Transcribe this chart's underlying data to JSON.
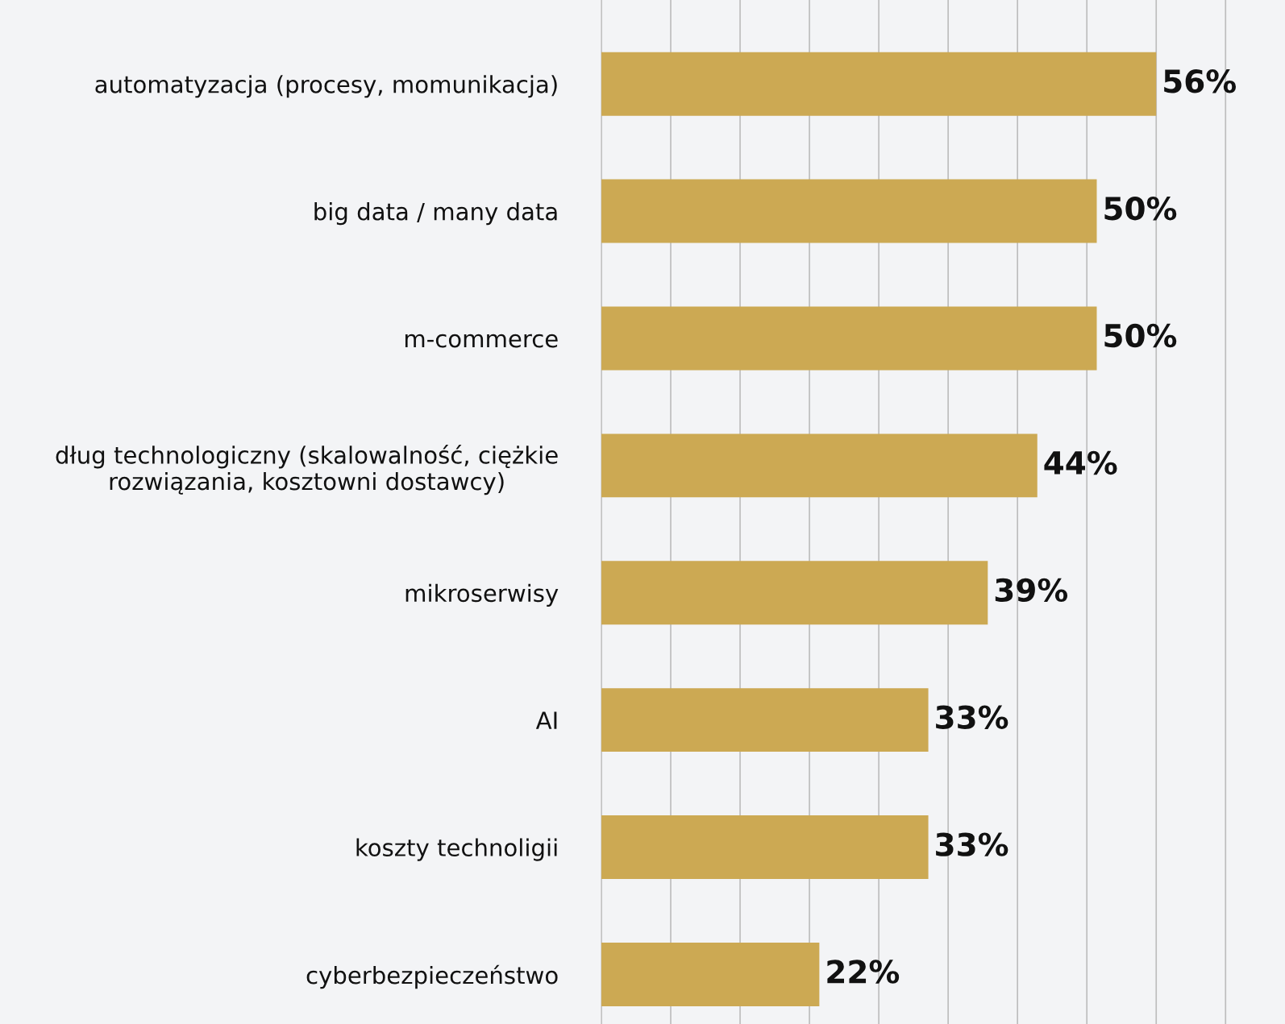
{
  "chart_data": {
    "type": "bar",
    "orientation": "horizontal",
    "categories": [
      "automatyzacja (procesy, momunikacja)",
      "big data / many data",
      "m-commerce",
      "dług technologiczny (skalowalność, ciężkie\nrozwiązania, kosztowni dostawcy)",
      "mikroserwisy",
      "AI",
      "koszty technoligii",
      "cyberbezpieczeństwo"
    ],
    "values": [
      56,
      50,
      50,
      44,
      39,
      33,
      33,
      22
    ],
    "value_labels": [
      "56%",
      "50%",
      "50%",
      "44%",
      "39%",
      "33%",
      "33%",
      "22%"
    ],
    "color": "#cca953",
    "xlim": [
      0,
      69
    ],
    "xticks": [
      {
        "value": 0,
        "label": null
      },
      {
        "value": 7,
        "label": null
      },
      {
        "value": 14,
        "label": null
      },
      {
        "value": 21,
        "label": null
      },
      {
        "value": 28,
        "label": null
      },
      {
        "value": 35,
        "label": null
      },
      {
        "value": 42,
        "label": null
      },
      {
        "value": 49,
        "label": null
      },
      {
        "value": 56,
        "label": null
      },
      {
        "value": 63,
        "label": null
      }
    ],
    "grid": "x",
    "tick_labels": "y",
    "legend": false
  }
}
